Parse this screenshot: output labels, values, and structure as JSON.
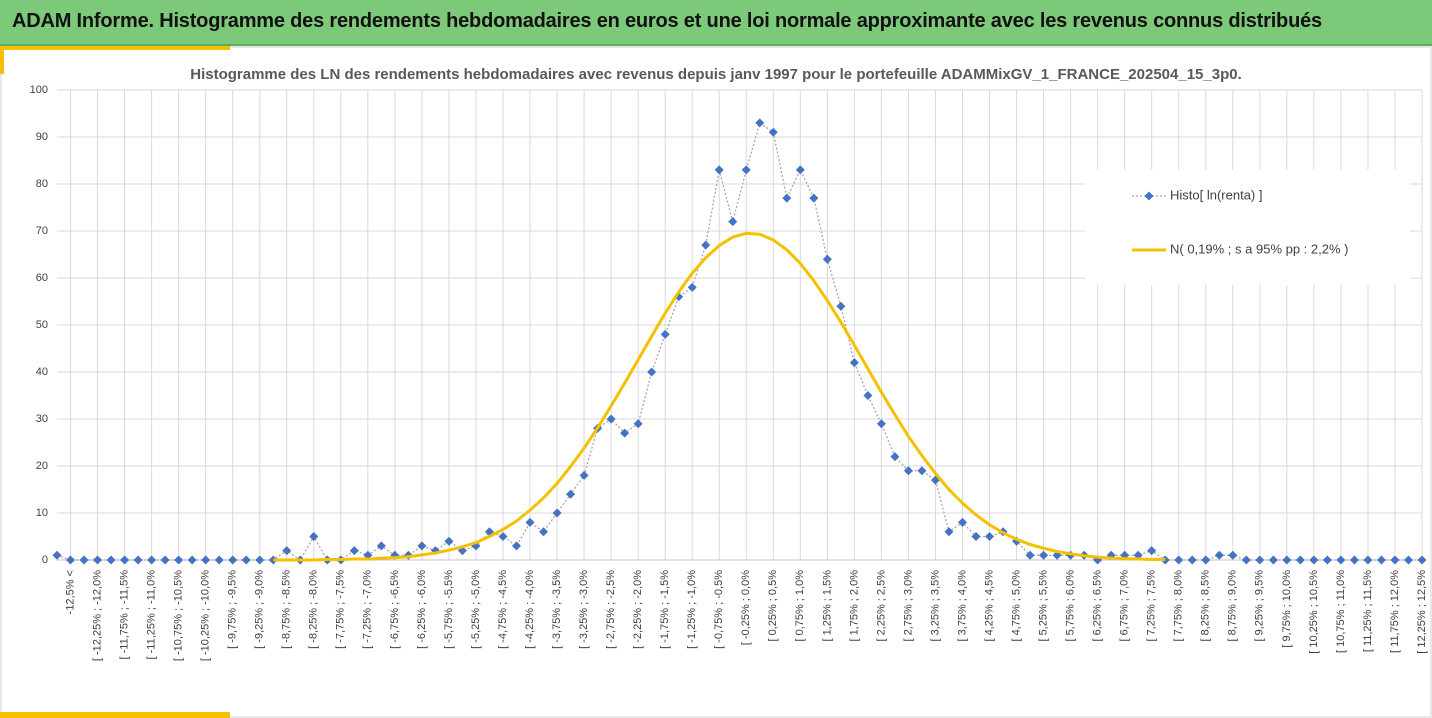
{
  "header": {
    "title": "ADAM Informe. Histogramme des rendements hebdomadaires en euros et une loi normale approximante avec les revenus connus distribués"
  },
  "chart_data": {
    "type": "line",
    "title": "Histogramme des LN des rendements hebdomadaires avec revenus depuis janv 1997 pour le portefeuille ADAMMixGV_1_FRANCE_202504_15_3p0.",
    "categories": [
      null,
      "-12,5% <",
      null,
      "[ -12,25% ; -12,0%",
      null,
      "[ -11,75% ; -11,5%",
      null,
      "[ -11,25% ; -11,0%",
      null,
      "[ -10,75% ; -10,5%",
      null,
      "[ -10,25% ; -10,0%",
      null,
      "[ -9,75% ; -9,5%",
      null,
      "[ -9,25% ; -9,0%",
      null,
      "[ -8,75% ; -8,5%",
      null,
      "[ -8,25% ; -8,0%",
      null,
      "[ -7,75% ; -7,5%",
      null,
      "[ -7,25% ; -7,0%",
      null,
      "[ -6,75% ; -6,5%",
      null,
      "[ -6,25% ; -6,0%",
      null,
      "[ -5,75% ; -5,5%",
      null,
      "[ -5,25% ; -5,0%",
      null,
      "[ -4,75% ; -4,5%",
      null,
      "[ -4,25% ; -4,0%",
      null,
      "[ -3,75% ; -3,5%",
      null,
      "[ -3,25% ; -3,0%",
      null,
      "[ -2,75% ; -2,5%",
      null,
      "[ -2,25% ; -2,0%",
      null,
      "[ -1,75% ; -1,5%",
      null,
      "[ -1,25% ; -1,0%",
      null,
      "[ -0,75% ; -0,5%",
      null,
      "[ -0,25% ; 0,0%",
      null,
      "[ 0,25% ; 0,5%",
      null,
      "[ 0,75% ; 1,0%",
      null,
      "[ 1,25% ; 1,5%",
      null,
      "[ 1,75% ; 2,0%",
      null,
      "[ 2,25% ; 2,5%",
      null,
      "[ 2,75% ; 3,0%",
      null,
      "[ 3,25% ; 3,5%",
      null,
      "[ 3,75% ; 4,0%",
      null,
      "[ 4,25% ; 4,5%",
      null,
      "[ 4,75% ; 5,0%",
      null,
      "[ 5,25% ; 5,5%",
      null,
      "[ 5,75% ; 6,0%",
      null,
      "[ 6,25% ; 6,5%",
      null,
      "[ 6,75% ; 7,0%",
      null,
      "[ 7,25% ; 7,5%",
      null,
      "[ 7,75% ; 8,0%",
      null,
      "[ 8,25% ; 8,5%",
      null,
      "[ 8,75% ; 9,0%",
      null,
      "[ 9,25% ; 9,5%",
      null,
      "[ 9,75% ; 10,0%",
      null,
      "[ 10,25% ; 10,5%",
      null,
      "[ 10,75% ; 11,0%",
      null,
      "[ 11,25% ; 11,5%",
      null,
      "[ 11,75% ; 12,0%",
      null,
      "[ 12,25% ; 12,5%"
    ],
    "series": [
      {
        "name": "Histo[ ln(renta) ]",
        "color": "#4472c4",
        "line_color": "#a6a6a6",
        "dashed": true,
        "marker": "diamond",
        "values": [
          1,
          0,
          0,
          0,
          0,
          0,
          0,
          0,
          0,
          0,
          0,
          0,
          0,
          0,
          0,
          0,
          0,
          2,
          0,
          5,
          0,
          0,
          2,
          1,
          3,
          1,
          1,
          3,
          2,
          4,
          2,
          3,
          6,
          5,
          3,
          8,
          6,
          10,
          14,
          18,
          28,
          30,
          27,
          29,
          40,
          48,
          56,
          58,
          67,
          83,
          72,
          83,
          93,
          91,
          77,
          83,
          77,
          64,
          54,
          42,
          35,
          29,
          22,
          19,
          19,
          17,
          6,
          8,
          5,
          5,
          6,
          4,
          1,
          1,
          1,
          1,
          1,
          0,
          1,
          1,
          1,
          2,
          0,
          0,
          0,
          0,
          1,
          1,
          0,
          0,
          0,
          0,
          0,
          0,
          0,
          0,
          0,
          0,
          0,
          0,
          0,
          0
        ]
      },
      {
        "name": "N( 0,19% ; s a 95% pp : 2,2% )",
        "color": "#f5c000",
        "dashed": false,
        "marker": "none",
        "values": [
          null,
          null,
          null,
          null,
          null,
          null,
          null,
          null,
          null,
          null,
          null,
          null,
          null,
          null,
          null,
          null,
          0.0,
          0.0,
          0.0,
          0.0,
          0.1,
          0.1,
          0.2,
          0.2,
          0.4,
          0.5,
          0.7,
          1.1,
          1.5,
          2.1,
          2.8,
          3.7,
          5.0,
          6.5,
          8.3,
          10.6,
          13.2,
          16.3,
          19.9,
          23.8,
          28.1,
          32.8,
          37.6,
          42.6,
          47.6,
          52.5,
          57.0,
          61.0,
          64.3,
          66.9,
          68.7,
          69.5,
          69.3,
          68.1,
          66.0,
          63.1,
          59.4,
          55.2,
          50.6,
          45.7,
          40.7,
          35.7,
          30.9,
          26.3,
          22.2,
          18.4,
          15.0,
          12.1,
          9.6,
          7.5,
          5.8,
          4.4,
          3.3,
          2.5,
          1.8,
          1.3,
          0.9,
          0.6,
          0.4,
          0.3,
          0.2,
          0.1,
          0.1,
          null,
          null,
          null,
          null,
          null,
          null,
          null,
          null,
          null,
          null,
          null,
          null,
          null,
          null,
          null,
          null,
          null,
          null,
          null
        ]
      }
    ],
    "ylim": [
      0,
      100
    ],
    "yticks": [
      0,
      10,
      20,
      30,
      40,
      50,
      60,
      70,
      80,
      90,
      100
    ],
    "grid": true,
    "legend": "right"
  }
}
